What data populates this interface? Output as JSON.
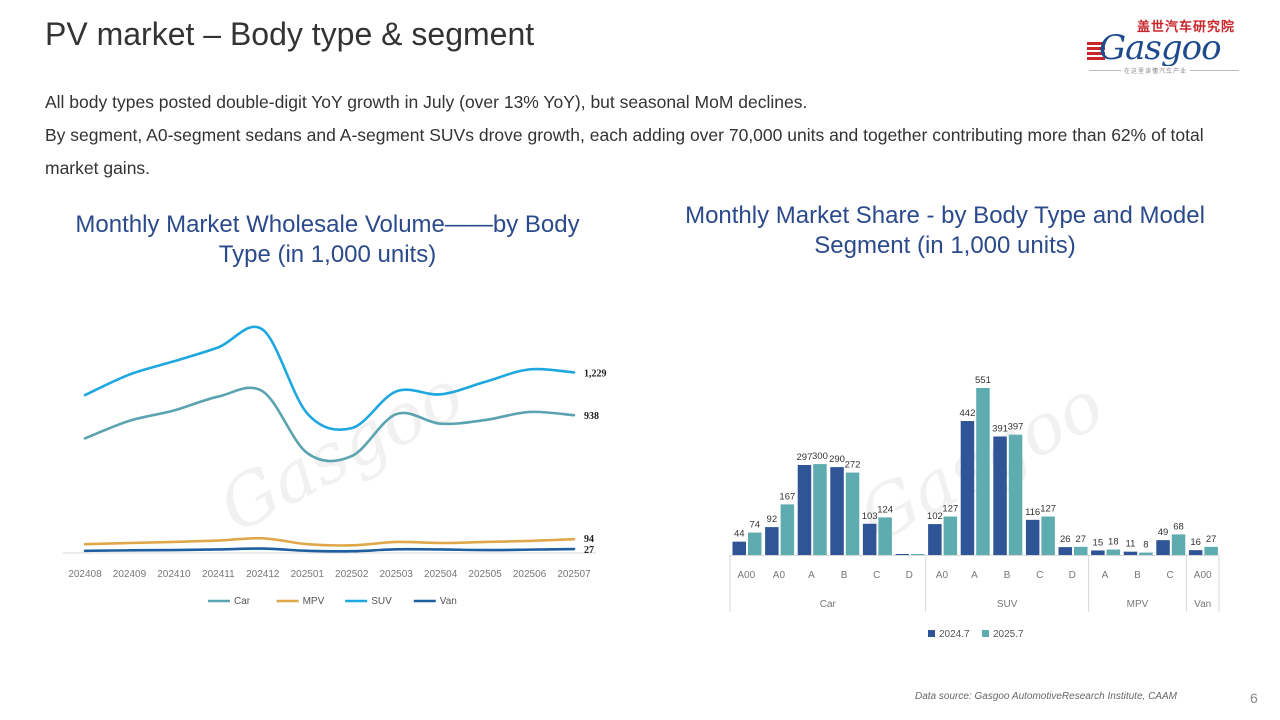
{
  "page": {
    "title": "PV market – Body type & segment",
    "page_number": "6",
    "source": "Data source: Gasgoo AutomotiveResearch Institute, CAAM"
  },
  "logo": {
    "cn": "盖世汽车研究院",
    "word": "Gasgoo",
    "tagline": "在这里读懂汽车产业"
  },
  "summary": [
    "All body types posted double-digit YoY growth in July (over 13% YoY), but seasonal MoM declines.",
    "By segment, A0-segment sedans and A-segment SUVs drove growth, each adding over 70,000 units and together contributing more than 62% of total market gains."
  ],
  "colors": {
    "car": "#5ba3b0",
    "mpv": "#e0a74a",
    "suv": "#1fa7e0",
    "van": "#1f5fa0",
    "bar_2024": "#2f5597",
    "bar_2025": "#5eacb0"
  },
  "chart_data": [
    {
      "type": "line",
      "title": "Monthly Market Wholesale Volume——by Body Type (in 1,000 units)",
      "x": [
        "202408",
        "202409",
        "202410",
        "202411",
        "202412",
        "202501",
        "202502",
        "202503",
        "202504",
        "202505",
        "202506",
        "202507"
      ],
      "ylim": [
        0,
        1450
      ],
      "grid": false,
      "legend_position": "bottom",
      "series": [
        {
          "name": "Car",
          "values": [
            780,
            900,
            970,
            1065,
            1100,
            680,
            660,
            945,
            880,
            905,
            960,
            938
          ],
          "end_label": "938"
        },
        {
          "name": "MPV",
          "values": [
            60,
            68,
            75,
            85,
            100,
            60,
            52,
            75,
            68,
            75,
            82,
            94
          ],
          "end_label": "94"
        },
        {
          "name": "SUV",
          "values": [
            1075,
            1215,
            1305,
            1400,
            1520,
            950,
            850,
            1100,
            1080,
            1165,
            1250,
            1229
          ],
          "end_label": "1,229"
        },
        {
          "name": "Van",
          "values": [
            15,
            18,
            20,
            24,
            30,
            15,
            12,
            25,
            24,
            20,
            23,
            27
          ],
          "end_label": "27"
        }
      ]
    },
    {
      "type": "bar",
      "title": "Monthly Market Share - by Body Type and Model Segment (in 1,000 units)",
      "legend_position": "bottom",
      "groups": [
        {
          "name": "Car",
          "categories": [
            "A00",
            "A0",
            "A",
            "B",
            "C",
            "D"
          ]
        },
        {
          "name": "SUV",
          "categories": [
            "A0",
            "A",
            "B",
            "C",
            "D"
          ]
        },
        {
          "name": "MPV",
          "categories": [
            "A",
            "B",
            "C"
          ]
        },
        {
          "name": "Van",
          "categories": [
            "A00"
          ]
        }
      ],
      "series": [
        {
          "name": "2024.7",
          "values": [
            44,
            92,
            297,
            290,
            103,
            2,
            102,
            442,
            391,
            116,
            26,
            15,
            11,
            49,
            16
          ],
          "labels": [
            "44",
            "92",
            "297",
            "290",
            "103",
            "",
            "102",
            "442",
            "391",
            "116",
            "26",
            "15",
            "11",
            "49",
            "16"
          ]
        },
        {
          "name": "2025.7",
          "values": [
            74,
            167,
            300,
            272,
            124,
            2,
            127,
            551,
            397,
            127,
            27,
            18,
            8,
            68,
            27
          ],
          "labels": [
            "74",
            "167",
            "300",
            "272",
            "124",
            "",
            "127",
            "551",
            "397",
            "127",
            "27",
            "18",
            "8",
            "68",
            "27"
          ]
        }
      ]
    }
  ]
}
